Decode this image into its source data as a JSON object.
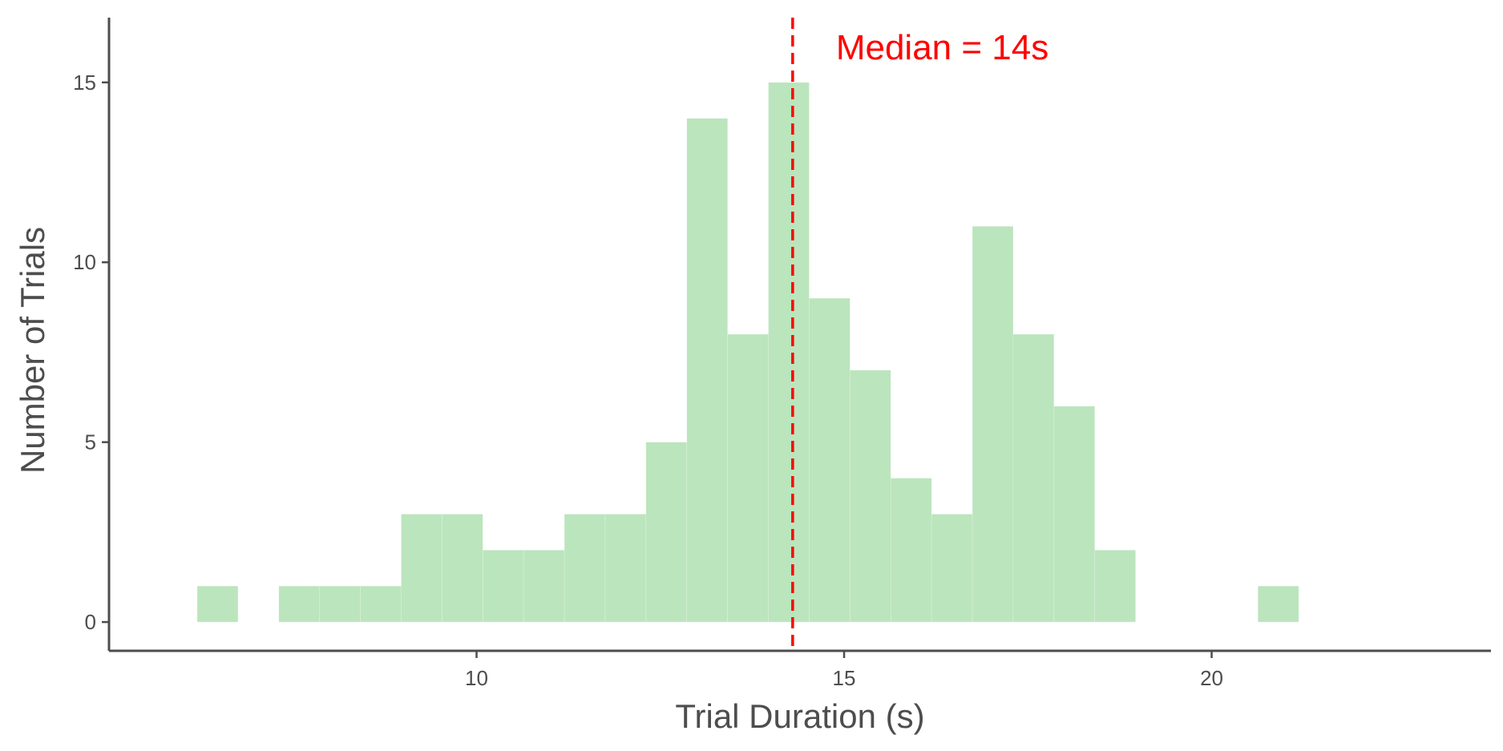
{
  "chart_data": {
    "type": "bar",
    "subtype": "histogram",
    "xlabel": "Trial Duration (s)",
    "ylabel": "Number of Trials",
    "xlim": [
      5,
      23.8
    ],
    "ylim": [
      -0.8,
      16.8
    ],
    "xticks": [
      10,
      15,
      20
    ],
    "yticks": [
      0,
      5,
      10,
      15
    ],
    "bin_width": 0.555,
    "bins": [
      {
        "x0": 6.2,
        "count": 1
      },
      {
        "x0": 6.755,
        "count": 0
      },
      {
        "x0": 7.31,
        "count": 1
      },
      {
        "x0": 7.865,
        "count": 1
      },
      {
        "x0": 8.42,
        "count": 1
      },
      {
        "x0": 8.975,
        "count": 3
      },
      {
        "x0": 9.53,
        "count": 3
      },
      {
        "x0": 10.085,
        "count": 2
      },
      {
        "x0": 10.64,
        "count": 2
      },
      {
        "x0": 11.195,
        "count": 3
      },
      {
        "x0": 11.75,
        "count": 3
      },
      {
        "x0": 12.305,
        "count": 5
      },
      {
        "x0": 12.86,
        "count": 14
      },
      {
        "x0": 13.415,
        "count": 8
      },
      {
        "x0": 13.97,
        "count": 15
      },
      {
        "x0": 14.525,
        "count": 9
      },
      {
        "x0": 15.08,
        "count": 7
      },
      {
        "x0": 15.635,
        "count": 4
      },
      {
        "x0": 16.19,
        "count": 3
      },
      {
        "x0": 16.745,
        "count": 11
      },
      {
        "x0": 17.3,
        "count": 8
      },
      {
        "x0": 17.855,
        "count": 6
      },
      {
        "x0": 18.41,
        "count": 2
      },
      {
        "x0": 18.965,
        "count": 0
      },
      {
        "x0": 19.52,
        "count": 0
      },
      {
        "x0": 20.075,
        "count": 0
      },
      {
        "x0": 20.63,
        "count": 1
      }
    ],
    "median": 14.3,
    "annotation": "Median = 14s",
    "grid": false,
    "legend": "none",
    "colors": {
      "bar_fill": "#bbe5bd",
      "median_line": "#ff0000",
      "axis": "#4d4d4d"
    }
  }
}
